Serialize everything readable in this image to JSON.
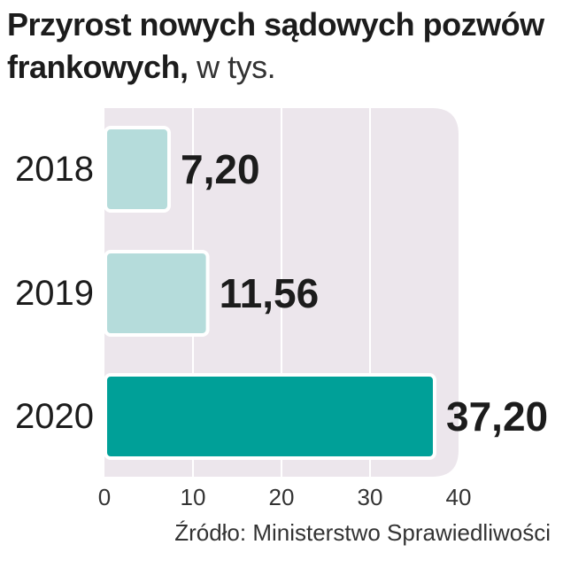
{
  "title": {
    "bold": "Przyrost nowych sądowych pozwów frankowych,",
    "light": "w tys."
  },
  "source": "Źródło: Ministerstwo Sprawiedliwości",
  "colors": {
    "plot_background": "#ece6ec",
    "gridline": "#ffffff",
    "bar_light": "#b5dcdb",
    "bar_highlight": "#00a098",
    "bar_border": "#ffffff",
    "text": "#1c1c1c"
  },
  "chart_data": {
    "type": "bar",
    "orientation": "horizontal",
    "title": "Przyrost nowych sądowych pozwów frankowych, w tys.",
    "categories": [
      "2018",
      "2019",
      "2020"
    ],
    "values": [
      7.2,
      11.56,
      37.2
    ],
    "value_labels": [
      "7,20",
      "11,56",
      "37,20"
    ],
    "highlight_index": 2,
    "xlim": [
      0,
      40
    ],
    "xticks": [
      0,
      10,
      20,
      30,
      40
    ],
    "xlabel": "",
    "ylabel": "",
    "grid": true,
    "legend": "none"
  }
}
